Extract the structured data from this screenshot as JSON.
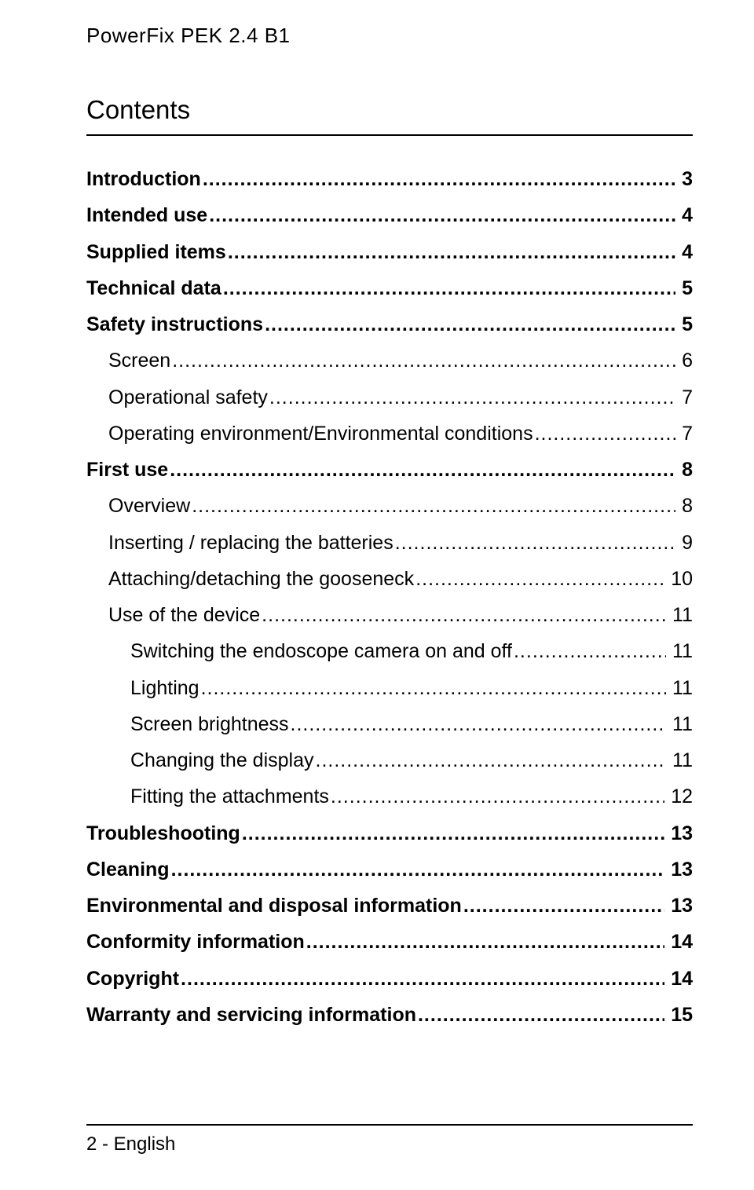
{
  "header": "PowerFix PEK 2.4 B1",
  "contents_title": "Contents",
  "footer": "2 - English",
  "toc": [
    {
      "label": "Introduction",
      "page": "3",
      "indent": 0,
      "bold": true
    },
    {
      "label": "Intended use",
      "page": "4",
      "indent": 0,
      "bold": true
    },
    {
      "label": "Supplied items",
      "page": "4",
      "indent": 0,
      "bold": true
    },
    {
      "label": "Technical data",
      "page": "5",
      "indent": 0,
      "bold": true
    },
    {
      "label": "Safety instructions",
      "page": "5",
      "indent": 0,
      "bold": true
    },
    {
      "label": "Screen",
      "page": "6",
      "indent": 1,
      "bold": false
    },
    {
      "label": "Operational safety",
      "page": "7",
      "indent": 1,
      "bold": false
    },
    {
      "label": "Operating environment/Environmental conditions",
      "page": "7",
      "indent": 1,
      "bold": false
    },
    {
      "label": "First use",
      "page": "8",
      "indent": 0,
      "bold": true
    },
    {
      "label": "Overview",
      "page": "8",
      "indent": 1,
      "bold": false
    },
    {
      "label": "Inserting / replacing the batteries",
      "page": "9",
      "indent": 1,
      "bold": false
    },
    {
      "label": "Attaching/detaching the gooseneck",
      "page": "10",
      "indent": 1,
      "bold": false
    },
    {
      "label": "Use of the device",
      "page": "11",
      "indent": 1,
      "bold": false
    },
    {
      "label": "Switching the endoscope camera on and off",
      "page": "11",
      "indent": 2,
      "bold": false
    },
    {
      "label": "Lighting",
      "page": "11",
      "indent": 2,
      "bold": false
    },
    {
      "label": "Screen brightness",
      "page": "11",
      "indent": 2,
      "bold": false
    },
    {
      "label": "Changing the display",
      "page": "11",
      "indent": 2,
      "bold": false
    },
    {
      "label": "Fitting the attachments",
      "page": "12",
      "indent": 2,
      "bold": false
    },
    {
      "label": "Troubleshooting",
      "page": "13",
      "indent": 0,
      "bold": true
    },
    {
      "label": "Cleaning",
      "page": "13",
      "indent": 0,
      "bold": true
    },
    {
      "label": "Environmental and disposal information",
      "page": "13",
      "indent": 0,
      "bold": true
    },
    {
      "label": "Conformity information",
      "page": "14",
      "indent": 0,
      "bold": true
    },
    {
      "label": "Copyright",
      "page": "14",
      "indent": 0,
      "bold": true
    },
    {
      "label": "Warranty and servicing information",
      "page": "15",
      "indent": 0,
      "bold": true
    }
  ]
}
